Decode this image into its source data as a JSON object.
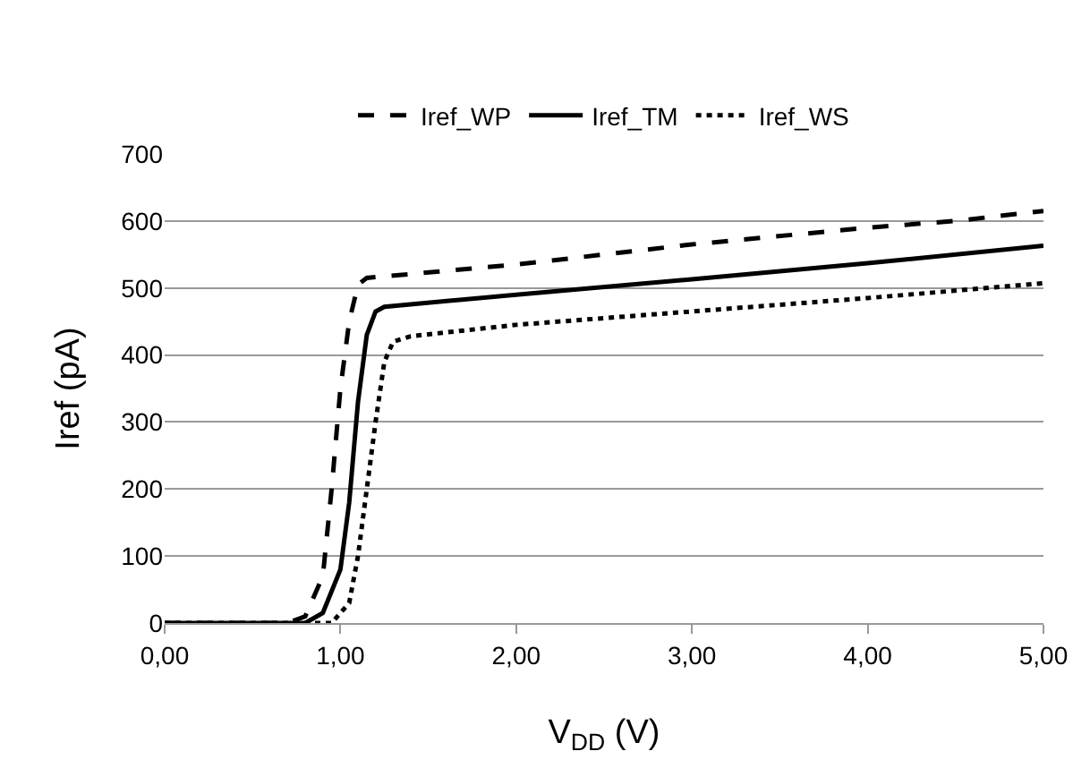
{
  "chart_data": {
    "type": "line",
    "xlabel": "V$_{DD}$ (V)",
    "ylabel": "Iref (pA)",
    "xlim": [
      0,
      5
    ],
    "ylim": [
      0,
      700
    ],
    "xticks": [
      {
        "value": 0,
        "label": "0,00"
      },
      {
        "value": 1,
        "label": "1,00"
      },
      {
        "value": 2,
        "label": "2,00"
      },
      {
        "value": 3,
        "label": "3,00"
      },
      {
        "value": 4,
        "label": "4,00"
      },
      {
        "value": 5,
        "label": "5,00"
      }
    ],
    "yticks": [
      0,
      100,
      200,
      300,
      400,
      500,
      600,
      700
    ],
    "grid": "y",
    "legend": "top",
    "marker": "none",
    "series": [
      {
        "name": "Iref_WP",
        "color": "#000000",
        "line_style": "dashed",
        "x": [
          0,
          0.7,
          0.8,
          0.9,
          0.95,
          1.0,
          1.05,
          1.1,
          1.15,
          2,
          3,
          4,
          4.5,
          5
        ],
        "values": [
          0,
          0,
          10,
          70,
          200,
          350,
          450,
          505,
          515,
          535,
          565,
          590,
          600,
          615
        ]
      },
      {
        "name": "Iref_TM",
        "color": "#000000",
        "line_style": "solid",
        "x": [
          0,
          0.8,
          0.9,
          1.0,
          1.05,
          1.1,
          1.15,
          1.2,
          1.25,
          2,
          3,
          4,
          5
        ],
        "values": [
          0,
          0,
          15,
          80,
          180,
          330,
          430,
          465,
          472,
          490,
          513,
          537,
          563
        ]
      },
      {
        "name": "Iref_WS",
        "color": "#000000",
        "line_style": "dotted",
        "x": [
          0,
          0.95,
          1.05,
          1.1,
          1.15,
          1.2,
          1.25,
          1.3,
          1.4,
          2,
          3,
          4,
          5
        ],
        "values": [
          0,
          0,
          30,
          100,
          200,
          300,
          390,
          420,
          428,
          445,
          465,
          485,
          507
        ]
      }
    ]
  }
}
